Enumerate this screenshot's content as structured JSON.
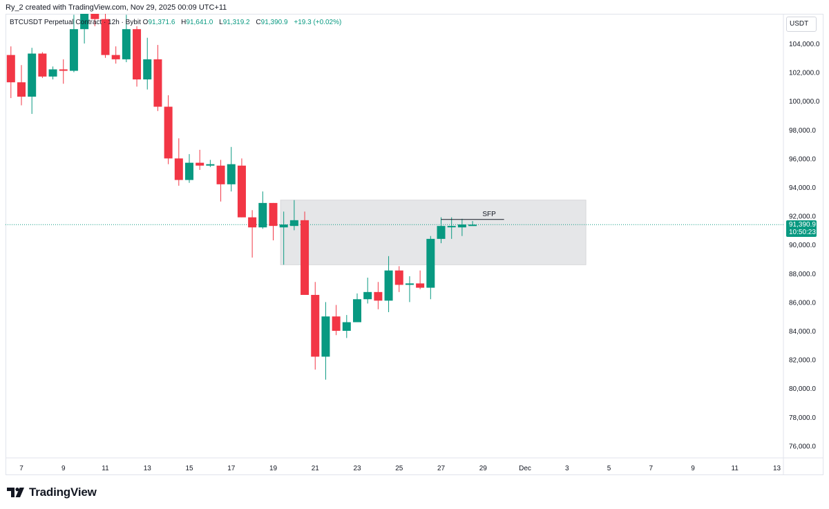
{
  "header": {
    "credit": "Ry_2 created with TradingView.com, Nov 29, 2025 00:09 UTC+11"
  },
  "legend": {
    "symbol": "BTCUSDT Perpetual Contract · 12h · Bybit",
    "open_key": "O",
    "open": "91,371.6",
    "high_key": "H",
    "high": "91,641.0",
    "low_key": "L",
    "low": "91,319.2",
    "close_key": "C",
    "close": "91,390.9",
    "change": "+19.3 (+0.02%)"
  },
  "currency_button": "USDT",
  "last_price": {
    "price": "91,390.9",
    "countdown": "10:50:23"
  },
  "footer": {
    "brand": "TradingView",
    "logo_icon": "tradingview-logo-icon"
  },
  "colors": {
    "up": "#089981",
    "down": "#f23645",
    "zone": "#e5e6e8",
    "last_price_line": "#089981"
  },
  "chart_data": {
    "type": "candlestick",
    "timeframe": "12h",
    "ylim": [
      75000,
      106200
    ],
    "y_ticks": [
      76000,
      78000,
      80000,
      82000,
      84000,
      86000,
      88000,
      90000,
      92000,
      94000,
      96000,
      98000,
      100000,
      102000,
      104000
    ],
    "y_tick_labels": [
      "76,000.0",
      "78,000.0",
      "80,000.0",
      "82,000.0",
      "84,000.0",
      "86,000.0",
      "88,000.0",
      "90,000.0",
      "92,000.0",
      "94,000.0",
      "96,000.0",
      "98,000.0",
      "100,000.0",
      "102,000.0",
      "104,000.0"
    ],
    "x_ticks": [
      {
        "day": 7,
        "label": "7"
      },
      {
        "day": 9,
        "label": "9"
      },
      {
        "day": 11,
        "label": "11"
      },
      {
        "day": 13,
        "label": "13"
      },
      {
        "day": 15,
        "label": "15"
      },
      {
        "day": 17,
        "label": "17"
      },
      {
        "day": 19,
        "label": "19"
      },
      {
        "day": 21,
        "label": "21"
      },
      {
        "day": 23,
        "label": "23"
      },
      {
        "day": 25,
        "label": "25"
      },
      {
        "day": 27,
        "label": "27"
      },
      {
        "day": 29,
        "label": "29"
      },
      {
        "day": 31,
        "label": "Dec"
      },
      {
        "day": 33,
        "label": "3"
      },
      {
        "day": 35,
        "label": "5"
      },
      {
        "day": 37,
        "label": "7"
      },
      {
        "day": 39,
        "label": "9"
      },
      {
        "day": 41,
        "label": "11"
      },
      {
        "day": 43,
        "label": "13"
      }
    ],
    "candles": [
      {
        "t": 6.5,
        "o": 103200,
        "h": 103800,
        "l": 100200,
        "c": 101300
      },
      {
        "t": 7.0,
        "o": 101300,
        "h": 102500,
        "l": 99700,
        "c": 100300
      },
      {
        "t": 7.5,
        "o": 100300,
        "h": 103700,
        "l": 99100,
        "c": 103300
      },
      {
        "t": 8.0,
        "o": 103300,
        "h": 103400,
        "l": 101600,
        "c": 101700
      },
      {
        "t": 8.5,
        "o": 101700,
        "h": 102400,
        "l": 101500,
        "c": 102200
      },
      {
        "t": 9.0,
        "o": 102200,
        "h": 102900,
        "l": 101200,
        "c": 102100
      },
      {
        "t": 9.5,
        "o": 102100,
        "h": 106000,
        "l": 102000,
        "c": 105000
      },
      {
        "t": 10.0,
        "o": 105000,
        "h": 106400,
        "l": 104000,
        "c": 106300
      },
      {
        "t": 10.5,
        "o": 106300,
        "h": 106400,
        "l": 105200,
        "c": 105700
      },
      {
        "t": 11.0,
        "o": 105700,
        "h": 106400,
        "l": 103000,
        "c": 103200
      },
      {
        "t": 11.5,
        "o": 103200,
        "h": 103800,
        "l": 102600,
        "c": 102900
      },
      {
        "t": 12.0,
        "o": 102900,
        "h": 106000,
        "l": 102700,
        "c": 105000
      },
      {
        "t": 12.5,
        "o": 105000,
        "h": 105200,
        "l": 101000,
        "c": 101500
      },
      {
        "t": 13.0,
        "o": 101500,
        "h": 104400,
        "l": 100800,
        "c": 102900
      },
      {
        "t": 13.5,
        "o": 102900,
        "h": 103900,
        "l": 99300,
        "c": 99600
      },
      {
        "t": 14.0,
        "o": 99600,
        "h": 100400,
        "l": 95600,
        "c": 96000
      },
      {
        "t": 14.5,
        "o": 96000,
        "h": 97400,
        "l": 94100,
        "c": 94500
      },
      {
        "t": 15.0,
        "o": 94500,
        "h": 96300,
        "l": 94300,
        "c": 95700
      },
      {
        "t": 15.5,
        "o": 95700,
        "h": 96600,
        "l": 95200,
        "c": 95500
      },
      {
        "t": 16.0,
        "o": 95500,
        "h": 95900,
        "l": 95400,
        "c": 95600
      },
      {
        "t": 16.5,
        "o": 95500,
        "h": 95900,
        "l": 93000,
        "c": 94200
      },
      {
        "t": 17.0,
        "o": 94200,
        "h": 96800,
        "l": 93700,
        "c": 95600
      },
      {
        "t": 17.5,
        "o": 95500,
        "h": 96000,
        "l": 91900,
        "c": 91900
      },
      {
        "t": 18.0,
        "o": 91900,
        "h": 92400,
        "l": 89100,
        "c": 91200
      },
      {
        "t": 18.5,
        "o": 91200,
        "h": 93700,
        "l": 91100,
        "c": 92900
      },
      {
        "t": 19.0,
        "o": 92900,
        "h": 92900,
        "l": 90300,
        "c": 91300
      },
      {
        "t": 19.5,
        "o": 91200,
        "h": 92300,
        "l": 88600,
        "c": 91400
      },
      {
        "t": 20.0,
        "o": 91300,
        "h": 93100,
        "l": 91000,
        "c": 91700
      },
      {
        "t": 20.5,
        "o": 91700,
        "h": 92300,
        "l": 86500,
        "c": 86500
      },
      {
        "t": 21.0,
        "o": 86500,
        "h": 87400,
        "l": 81300,
        "c": 82200
      },
      {
        "t": 21.5,
        "o": 82200,
        "h": 86000,
        "l": 80600,
        "c": 85000
      },
      {
        "t": 22.0,
        "o": 85000,
        "h": 85800,
        "l": 83700,
        "c": 84000
      },
      {
        "t": 22.5,
        "o": 84000,
        "h": 85100,
        "l": 83500,
        "c": 84600
      },
      {
        "t": 23.0,
        "o": 84600,
        "h": 86600,
        "l": 84600,
        "c": 86200
      },
      {
        "t": 23.5,
        "o": 86200,
        "h": 87700,
        "l": 85900,
        "c": 86700
      },
      {
        "t": 24.0,
        "o": 86700,
        "h": 87400,
        "l": 85500,
        "c": 86100
      },
      {
        "t": 24.5,
        "o": 86100,
        "h": 89200,
        "l": 85300,
        "c": 88200
      },
      {
        "t": 25.0,
        "o": 88200,
        "h": 88500,
        "l": 86700,
        "c": 87200
      },
      {
        "t": 25.5,
        "o": 87200,
        "h": 87800,
        "l": 86000,
        "c": 87300
      },
      {
        "t": 26.0,
        "o": 87300,
        "h": 88200,
        "l": 86900,
        "c": 87000
      },
      {
        "t": 26.5,
        "o": 87000,
        "h": 90600,
        "l": 86200,
        "c": 90400
      },
      {
        "t": 27.0,
        "o": 90400,
        "h": 91900,
        "l": 90100,
        "c": 91300
      },
      {
        "t": 27.5,
        "o": 91300,
        "h": 91900,
        "l": 90400,
        "c": 91300
      },
      {
        "t": 28.0,
        "o": 91200,
        "h": 91800,
        "l": 90600,
        "c": 91400
      },
      {
        "t": 28.5,
        "o": 91371.6,
        "h": 91641.0,
        "l": 91319.2,
        "c": 91390.9
      }
    ],
    "zone": {
      "t_start": 19.35,
      "t_end": 33.9,
      "low": 88600,
      "high": 93100
    },
    "annotations": [
      {
        "label": "SFP",
        "price": 91750,
        "t_start": 27.0,
        "t_end": 30.0
      }
    ],
    "last_price": 91390.9
  }
}
